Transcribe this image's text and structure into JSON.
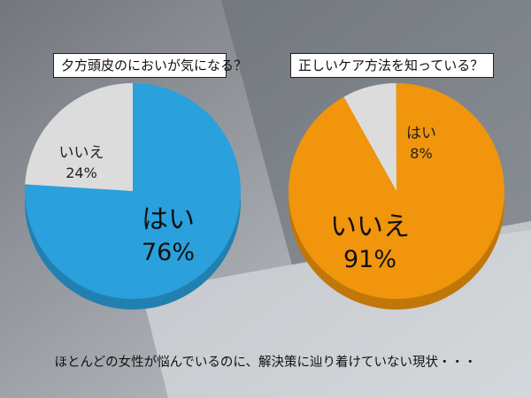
{
  "colors": {
    "blue": "#2aa0dc",
    "blue_side": "#1f7fb4",
    "orange": "#f0950c",
    "orange_side": "#c27205",
    "grey": "#dcdcdc",
    "grey_side": "#b9b9b9"
  },
  "chart_data": [
    {
      "type": "pie",
      "title": "夕方頭皮のにおいが気になる？",
      "slices": [
        {
          "label": "はい",
          "value": 76,
          "value_label": "76%",
          "color": "#2aa0dc"
        },
        {
          "label": "いいえ",
          "value": 24,
          "value_label": "24%",
          "color": "#dcdcdc"
        }
      ]
    },
    {
      "type": "pie",
      "title": "正しいケア方法を知っている？",
      "slices": [
        {
          "label": "はい",
          "value": 8,
          "value_label": "8%",
          "color": "#dcdcdc"
        },
        {
          "label": "いいえ",
          "value": 91,
          "value_label": "91%",
          "color": "#f0950c"
        }
      ]
    }
  ],
  "caption": "ほとんどの女性が悩んでいるのに、解決策に辿り着けていない現状・・・"
}
